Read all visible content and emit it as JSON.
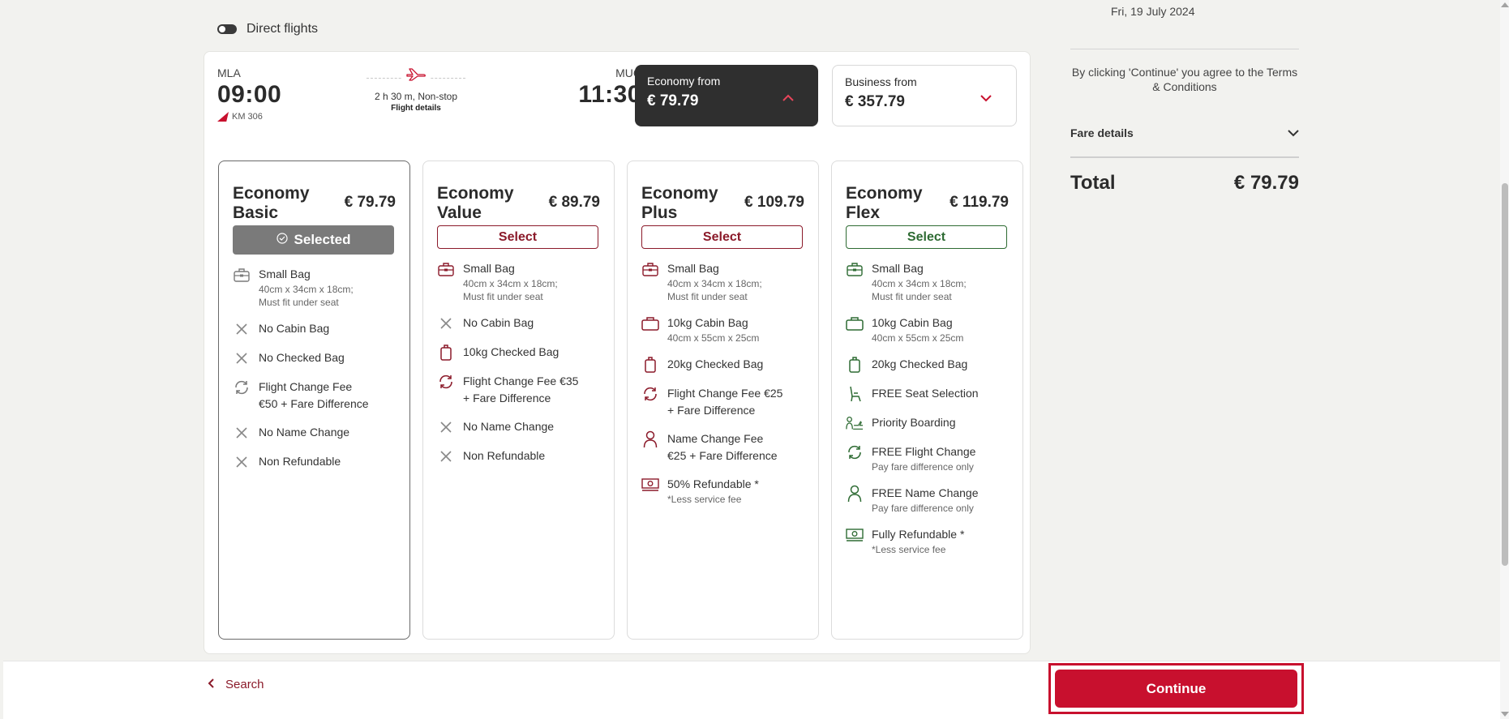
{
  "filters": {
    "direct_flights_label": "Direct flights",
    "direct_flights_on": false
  },
  "flight": {
    "departure": {
      "code": "MLA",
      "time": "09:00"
    },
    "arrival": {
      "code": "MUC",
      "time": "11:30"
    },
    "flight_number": "KM 306",
    "duration": "2 h 30 m, Non-stop",
    "details_link": "Flight details",
    "economy_tab": {
      "label": "Economy from",
      "price": "€ 79.79"
    },
    "business_tab": {
      "label": "Business from",
      "price": "€ 357.79"
    }
  },
  "fares": [
    {
      "name_line1": "Economy",
      "name_line2": "Basic",
      "price": "€ 79.79",
      "button": "Selected",
      "state": "selected",
      "features": [
        {
          "icon": "small-bag-icon",
          "title": "Small Bag",
          "sub1": "40cm x 34cm x 18cm;",
          "sub2": "Must fit under seat"
        },
        {
          "icon": "cross-icon",
          "title": "No Cabin Bag"
        },
        {
          "icon": "cross-icon",
          "title": "No Checked Bag"
        },
        {
          "icon": "flight-change-icon",
          "title": "Flight Change Fee",
          "title2": "€50 + Fare Difference"
        },
        {
          "icon": "cross-icon",
          "title": "No Name Change"
        },
        {
          "icon": "cross-icon",
          "title": "Non Refundable"
        }
      ]
    },
    {
      "name_line1": "Economy",
      "name_line2": "Value",
      "price": "€ 89.79",
      "button": "Select",
      "state": "red",
      "features": [
        {
          "icon": "small-bag-icon",
          "title": "Small Bag",
          "sub1": "40cm x 34cm x 18cm;",
          "sub2": "Must fit under seat"
        },
        {
          "icon": "cross-icon",
          "title": "No Cabin Bag"
        },
        {
          "icon": "checked-bag-icon",
          "title": "10kg Checked Bag"
        },
        {
          "icon": "flight-change-icon",
          "title": "Flight Change Fee €35",
          "title2": "+ Fare Difference"
        },
        {
          "icon": "cross-icon",
          "title": "No Name Change"
        },
        {
          "icon": "cross-icon",
          "title": "Non Refundable"
        }
      ]
    },
    {
      "name_line1": "Economy",
      "name_line2": "Plus",
      "price": "€ 109.79",
      "button": "Select",
      "state": "red",
      "features": [
        {
          "icon": "small-bag-icon",
          "title": "Small Bag",
          "sub1": "40cm x 34cm x 18cm;",
          "sub2": "Must fit under seat"
        },
        {
          "icon": "cabin-bag-icon",
          "title": "10kg Cabin Bag",
          "sub1": "40cm x 55cm x 25cm"
        },
        {
          "icon": "checked-bag-icon",
          "title": "20kg Checked Bag"
        },
        {
          "icon": "flight-change-icon",
          "title": "Flight Change Fee €25",
          "title2": "+ Fare Difference"
        },
        {
          "icon": "person-icon",
          "title": "Name Change Fee",
          "title2": "€25 + Fare Difference"
        },
        {
          "icon": "refund-icon",
          "title": "50% Refundable *",
          "sub1": "*Less service fee"
        }
      ]
    },
    {
      "name_line1": "Economy",
      "name_line2": "Flex",
      "price": "€ 119.79",
      "button": "Select",
      "state": "green",
      "features": [
        {
          "icon": "small-bag-icon",
          "title": "Small Bag",
          "sub1": "40cm x 34cm x 18cm;",
          "sub2": "Must fit under seat"
        },
        {
          "icon": "cabin-bag-icon",
          "title": "10kg Cabin Bag",
          "sub1": "40cm x 55cm x 25cm"
        },
        {
          "icon": "checked-bag-icon",
          "title": "20kg Checked Bag"
        },
        {
          "icon": "seat-icon",
          "title": "FREE Seat Selection"
        },
        {
          "icon": "priority-boarding-icon",
          "title": "Priority Boarding"
        },
        {
          "icon": "flight-change-icon",
          "title": "FREE Flight Change",
          "sub1": "Pay fare difference only"
        },
        {
          "icon": "person-icon",
          "title": "FREE Name Change",
          "sub1": "Pay fare difference only"
        },
        {
          "icon": "refund-icon",
          "title": "Fully Refundable *",
          "sub1": "*Less service fee"
        }
      ]
    }
  ],
  "summary": {
    "date": "Fri, 19 July 2024",
    "terms": "By clicking 'Continue' you agree to the Terms & Conditions",
    "fare_details_label": "Fare details",
    "total_label": "Total",
    "total_value": "€ 79.79"
  },
  "footer": {
    "back_label": "Search",
    "continue_label": "Continue"
  },
  "colors": {
    "brand_red": "#c8102e",
    "dark_red": "#8b1a2a",
    "flex_green": "#2e6b33",
    "selected_gray": "#7a7a7a"
  }
}
